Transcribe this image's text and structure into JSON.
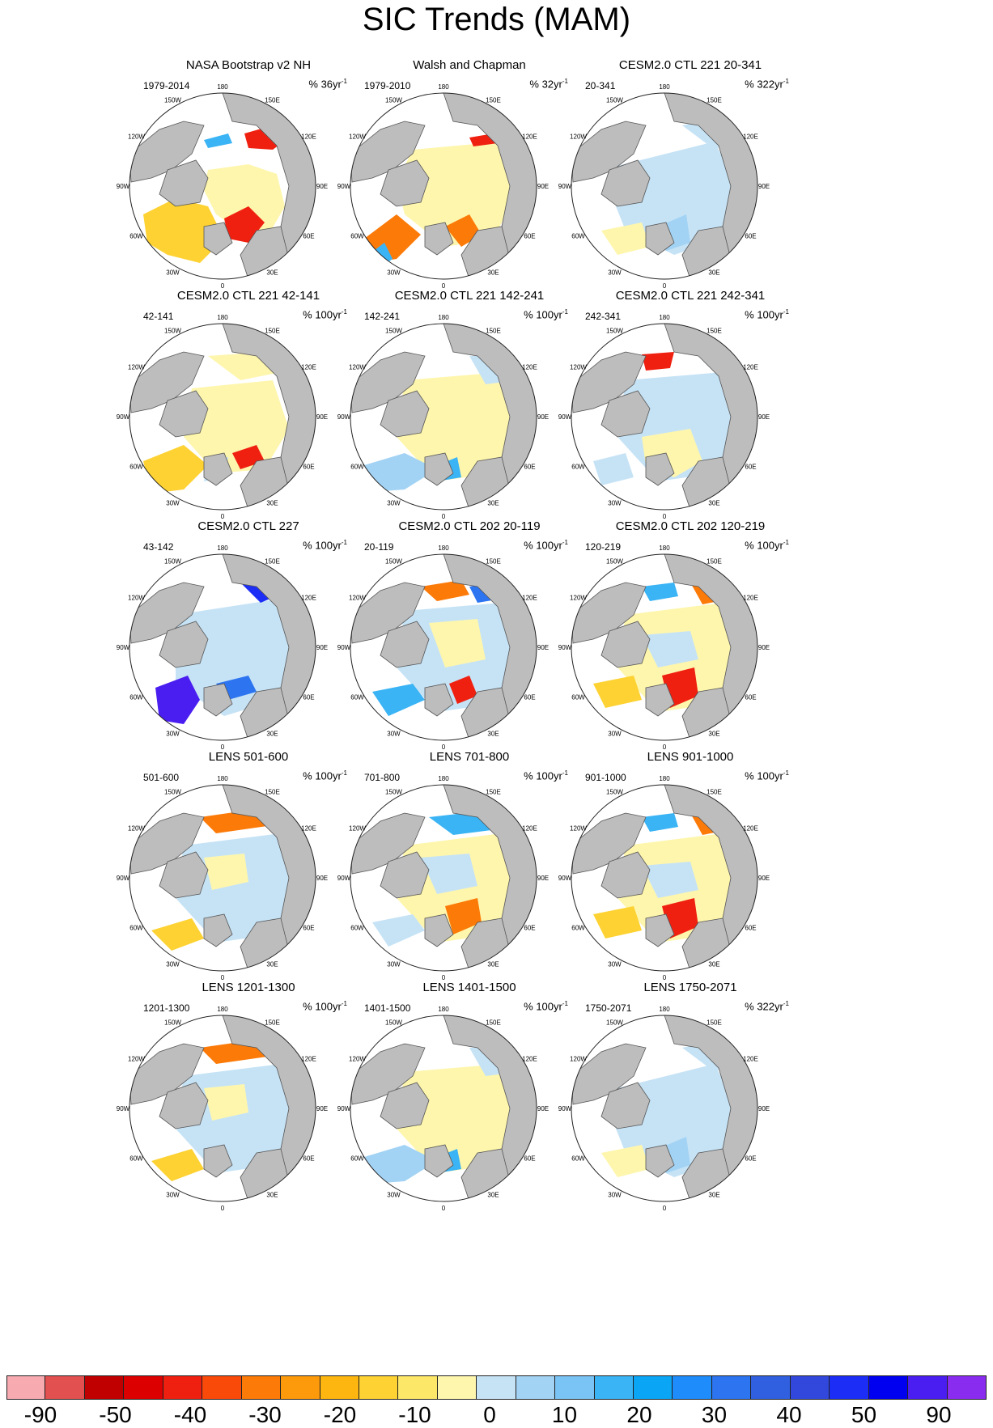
{
  "title": "SIC Trends (MAM)",
  "lon_labels": [
    "180",
    "150E",
    "120E",
    "90E",
    "60E",
    "30E",
    "0",
    "30W",
    "60W",
    "90W",
    "120W",
    "150W"
  ],
  "colors": {
    "land": "#bdbdbd",
    "coast": "#555555",
    "circle": "#222222"
  },
  "panels": [
    {
      "title": "NASA Bootstrap v2 NH",
      "period": "1979-2014",
      "rate": "36",
      "unit": "yr",
      "exp": "-1",
      "pattern": "obs1"
    },
    {
      "title": "Walsh and Chapman",
      "period": "1979-2010",
      "rate": "32",
      "unit": "yr",
      "exp": "-1",
      "pattern": "obs2"
    },
    {
      "title": "CESM2.0 CTL 221 20-341",
      "period": "20-341",
      "rate": "322",
      "unit": "yr",
      "exp": "-1",
      "pattern": "blue"
    },
    {
      "title": "CESM2.0 CTL 221 42-141",
      "period": "42-141",
      "rate": "100",
      "unit": "yr",
      "exp": "-1",
      "pattern": "yellowred"
    },
    {
      "title": "CESM2.0 CTL 221 142-241",
      "period": "142-241",
      "rate": "100",
      "unit": "yr",
      "exp": "-1",
      "pattern": "yellowblue"
    },
    {
      "title": "CESM2.0 CTL 221 242-341",
      "period": "242-341",
      "rate": "100",
      "unit": "yr",
      "exp": "-1",
      "pattern": "blueyellow"
    },
    {
      "title": "CESM2.0 CTL 227",
      "period": "43-142",
      "rate": "100",
      "unit": "yr",
      "exp": "-1",
      "pattern": "deepblue"
    },
    {
      "title": "CESM2.0 CTL 202 20-119",
      "period": "20-119",
      "rate": "100",
      "unit": "yr",
      "exp": "-1",
      "pattern": "mixed"
    },
    {
      "title": "CESM2.0 CTL 202 120-219",
      "period": "120-219",
      "rate": "100",
      "unit": "yr",
      "exp": "-1",
      "pattern": "warm"
    },
    {
      "title": "LENS 501-600",
      "period": "501-600",
      "rate": "100",
      "unit": "yr",
      "exp": "-1",
      "pattern": "lens1"
    },
    {
      "title": "LENS 701-800",
      "period": "701-800",
      "rate": "100",
      "unit": "yr",
      "exp": "-1",
      "pattern": "lens2"
    },
    {
      "title": "LENS 901-1000",
      "period": "901-1000",
      "rate": "100",
      "unit": "yr",
      "exp": "-1",
      "pattern": "warm"
    },
    {
      "title": "LENS 1201-1300",
      "period": "1201-1300",
      "rate": "100",
      "unit": "yr",
      "exp": "-1",
      "pattern": "lens1"
    },
    {
      "title": "LENS 1401-1500",
      "period": "1401-1500",
      "rate": "100",
      "unit": "yr",
      "exp": "-1",
      "pattern": "yellowblue"
    },
    {
      "title": "LENS 1750-2071",
      "period": "1750-2071",
      "rate": "322",
      "unit": "yr",
      "exp": "-1",
      "pattern": "blue"
    }
  ],
  "colorbar": {
    "colors": [
      "#f7aab0",
      "#e25050",
      "#c00000",
      "#dc0000",
      "#f02010",
      "#fa4a0a",
      "#fc7a08",
      "#fd9a0c",
      "#fdb60f",
      "#fdd232",
      "#fde768",
      "#fef6ad",
      "#c6e3f6",
      "#a2d3f4",
      "#7ac4f5",
      "#3ab4f5",
      "#0aa6f5",
      "#1e8cfa",
      "#2c74f0",
      "#3060e0",
      "#3248dc",
      "#1c2ef5",
      "#0000f0",
      "#4a1ef0",
      "#8a2cf0"
    ],
    "labels": [
      "-90",
      "-50",
      "-40",
      "-30",
      "-20",
      "-10",
      "0",
      "10",
      "20",
      "30",
      "40",
      "50",
      "90"
    ]
  }
}
